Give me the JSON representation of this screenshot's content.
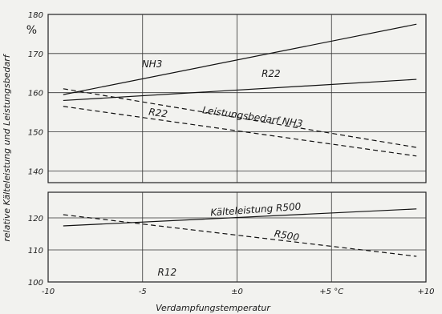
{
  "chart_data": {
    "type": "line",
    "xlabel": "Verdampfungstemperatur",
    "ylabel": "relative Kälteleistung und Leistungsbedarf",
    "y_unit": "%",
    "xlim": [
      -10,
      10
    ],
    "grid": true,
    "x_ticks": [
      {
        "value": -10,
        "label": "-10"
      },
      {
        "value": -5,
        "label": "-5"
      },
      {
        "value": 0,
        "label": "±0"
      },
      {
        "value": 5,
        "label": "+5 °C"
      },
      {
        "value": 10,
        "label": "+10"
      }
    ],
    "panels": [
      {
        "id": "upper",
        "ylim": [
          137,
          180
        ],
        "y_ticks": [
          140,
          150,
          160,
          170,
          180
        ],
        "series": [
          {
            "name": "NH3",
            "style": "solid",
            "x": [
              -9.2,
              9.5
            ],
            "y": [
              159.5,
              177.5
            ]
          },
          {
            "name": "R22",
            "style": "solid",
            "x": [
              -9.2,
              9.5
            ],
            "y": [
              158,
              163.4
            ]
          },
          {
            "name": "Leistungsbedarf NH3",
            "style": "dashed",
            "x": [
              -9.2,
              9.5
            ],
            "y": [
              161,
              146
            ]
          },
          {
            "name": "R22",
            "style": "dashed",
            "x": [
              -9.2,
              9.5
            ],
            "y": [
              156.5,
              143.8
            ]
          }
        ]
      },
      {
        "id": "lower",
        "ylim": [
          100,
          128
        ],
        "y_ticks": [
          100,
          110,
          120
        ],
        "series": [
          {
            "name": "Kälteleistung R500",
            "style": "solid",
            "x": [
              -9.2,
              9.5
            ],
            "y": [
              117.5,
              122.8
            ]
          },
          {
            "name": "R500",
            "style": "dashed",
            "x": [
              -9.2,
              9.5
            ],
            "y": [
              121,
              108
            ]
          }
        ]
      }
    ],
    "annotations": [
      {
        "text": "NH3",
        "panel": "upper",
        "x": -4.5,
        "y": 166.5
      },
      {
        "text": "R22",
        "panel": "upper",
        "x": 1.8,
        "y": 164
      },
      {
        "text": "Leistungsbedarf NH3",
        "panel": "upper",
        "x": 0.8,
        "y": 153,
        "angle": 8
      },
      {
        "text": "R22",
        "panel": "upper",
        "x": -4.2,
        "y": 154,
        "angle": 8
      },
      {
        "text": "Kälteleistung R500",
        "panel": "lower",
        "x": 1.0,
        "y": 121.6,
        "angle": -4
      },
      {
        "text": "R500",
        "panel": "lower",
        "x": 2.6,
        "y": 113.5,
        "angle": 10
      },
      {
        "text": "R12",
        "panel": "lower",
        "x": -3.7,
        "y": 102
      }
    ]
  }
}
